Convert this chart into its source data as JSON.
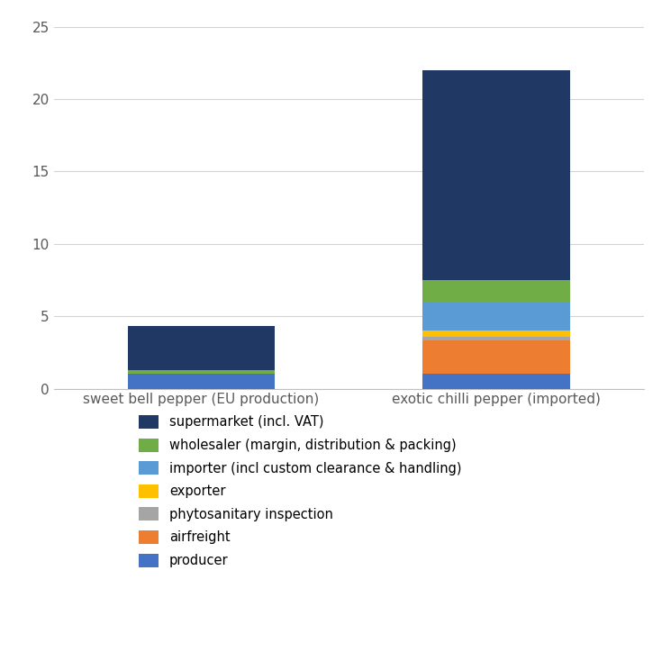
{
  "categories": [
    "sweet bell pepper (EU production)",
    "exotic chilli pepper (imported)"
  ],
  "segments": [
    {
      "label": "producer",
      "color": "#4472C4",
      "values": [
        1.0,
        1.0
      ]
    },
    {
      "label": "airfreight",
      "color": "#ED7D31",
      "values": [
        0.0,
        2.3
      ]
    },
    {
      "label": "phytosanitary inspection",
      "color": "#A5A5A5",
      "values": [
        0.0,
        0.3
      ]
    },
    {
      "label": "exporter",
      "color": "#FFC000",
      "values": [
        0.0,
        0.4
      ]
    },
    {
      "label": "importer (incl custom clearance & handling)",
      "color": "#5B9BD5",
      "values": [
        0.0,
        2.0
      ]
    },
    {
      "label": "wholesaler (margin, distribution & packing)",
      "color": "#70AD47",
      "values": [
        0.3,
        1.5
      ]
    },
    {
      "label": "supermarket (incl. VAT)",
      "color": "#1F3864",
      "values": [
        3.0,
        14.5
      ]
    }
  ],
  "ylim": [
    0,
    25
  ],
  "yticks": [
    0,
    5,
    10,
    15,
    20,
    25
  ],
  "background_color": "#ffffff",
  "bar_width": 0.25,
  "legend_order": [
    6,
    5,
    4,
    3,
    2,
    1,
    0
  ],
  "x_positions": [
    0.25,
    0.75
  ]
}
